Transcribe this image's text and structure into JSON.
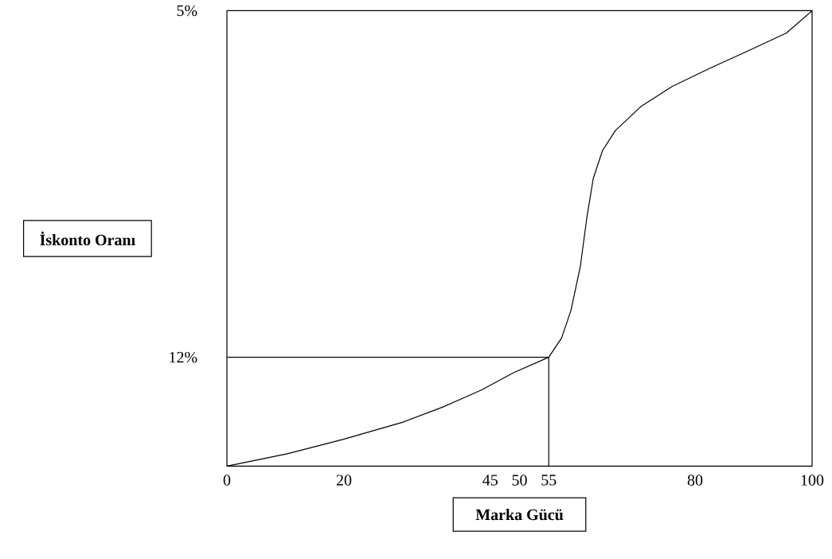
{
  "chart_data": {
    "type": "line",
    "xlabel": "Marka Gücü",
    "ylabel": "İskonto Oranı",
    "xlim": [
      0,
      100
    ],
    "ylim": [
      14.2,
      5
    ],
    "xticks": [
      0,
      20,
      45,
      50,
      55,
      80,
      100
    ],
    "yticks": [
      {
        "value": 5,
        "label": "5%"
      },
      {
        "value": 12,
        "label": "12%"
      }
    ],
    "grid": false,
    "marker": "none",
    "line_style": "solid",
    "series": [
      {
        "color": "#000000",
        "x": [
          0,
          10.3,
          19.8,
          30.1,
          37.0,
          43.5,
          49.0,
          55,
          57.2,
          58.8,
          60.4,
          61.5,
          62.6,
          64.2,
          66.4,
          70.7,
          76.1,
          82.6,
          89.1,
          95.6,
          100
        ],
        "values": [
          14.2,
          13.95,
          13.66,
          13.31,
          13.0,
          12.66,
          12.31,
          12.0,
          11.61,
          11.05,
          10.16,
          9.19,
          8.39,
          7.82,
          7.42,
          6.94,
          6.53,
          6.16,
          5.81,
          5.45,
          5.0
        ]
      },
      {
        "color": "#000000",
        "x": [
          0,
          55,
          55
        ],
        "values": [
          12,
          12,
          14.2
        ]
      }
    ]
  }
}
